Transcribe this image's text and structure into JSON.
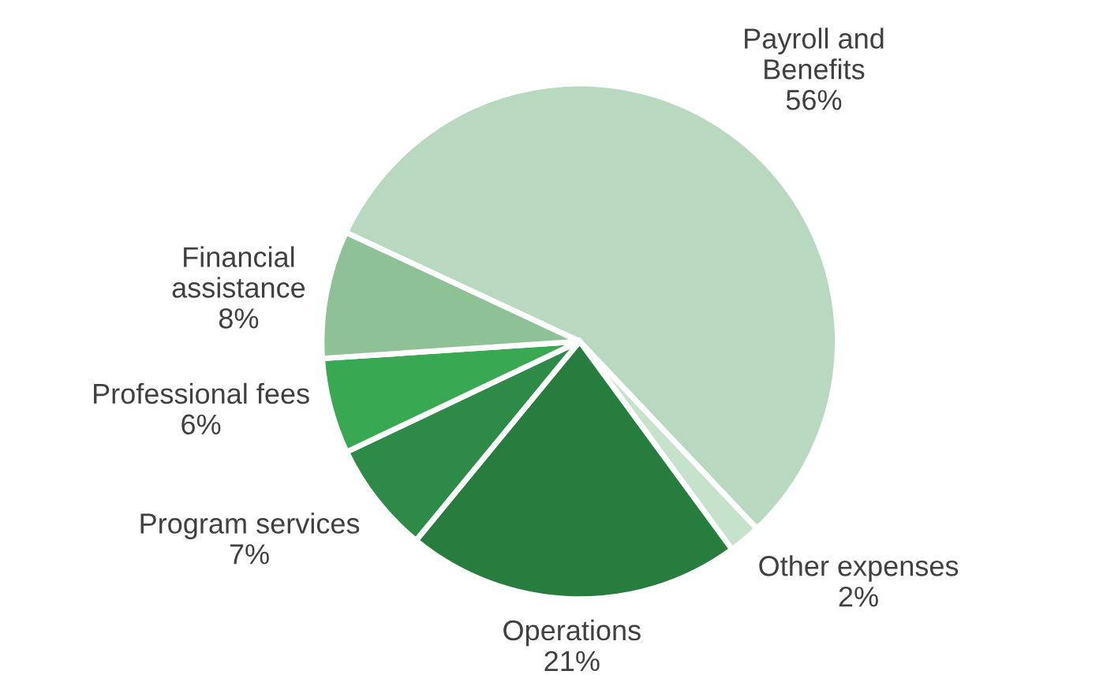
{
  "chart_data": {
    "type": "pie",
    "categories": [
      "Payroll and\nBenefits",
      "Other expenses",
      "Operations",
      "Program services",
      "Professional fees",
      "Financial\nassistance"
    ],
    "values": [
      56,
      2,
      21,
      7,
      6,
      8
    ],
    "value_labels": [
      "56%",
      "2%",
      "21%",
      "7%",
      "6%",
      "8%"
    ],
    "colors": [
      "#b8d8bf",
      "#c6e2cb",
      "#267d3d",
      "#2e8b47",
      "#38a852",
      "#8fc196"
    ]
  }
}
